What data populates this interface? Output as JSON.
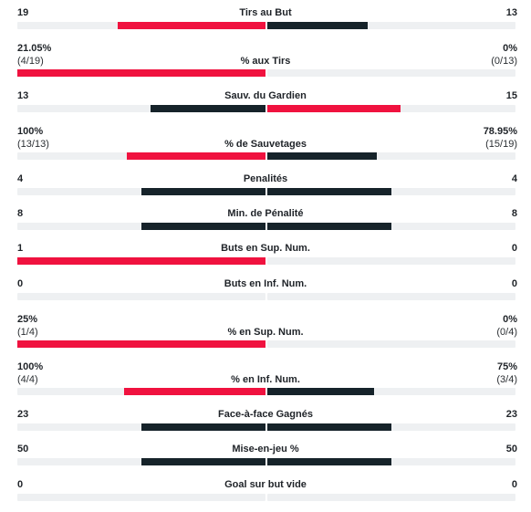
{
  "colors": {
    "leader": "#f0123f",
    "trailer": "#16232a",
    "track": "#eef0f2"
  },
  "stats": [
    {
      "label": "Tirs au But",
      "home": "19",
      "away": "13",
      "home_share": 0.594,
      "away_share": 0.406,
      "home_color": "leader",
      "away_color": "trailer"
    },
    {
      "label": "% aux Tirs",
      "home": "21.05%",
      "home_sub": "(4/19)",
      "away": "0%",
      "away_sub": "(0/13)",
      "home_share": 1.0,
      "away_share": 0.0,
      "home_color": "leader",
      "away_color": "trailer"
    },
    {
      "label": "Sauv. du Gardien",
      "home": "13",
      "away": "15",
      "home_share": 0.464,
      "away_share": 0.536,
      "home_color": "trailer",
      "away_color": "leader"
    },
    {
      "label": "% de Sauvetages",
      "home": "100%",
      "home_sub": "(13/13)",
      "away": "78.95%",
      "away_sub": "(15/19)",
      "home_share": 0.559,
      "away_share": 0.441,
      "home_color": "leader",
      "away_color": "trailer"
    },
    {
      "label": "Penalités",
      "home": "4",
      "away": "4",
      "home_share": 0.5,
      "away_share": 0.5,
      "home_color": "trailer",
      "away_color": "trailer"
    },
    {
      "label": "Min. de Pénalité",
      "home": "8",
      "away": "8",
      "home_share": 0.5,
      "away_share": 0.5,
      "home_color": "trailer",
      "away_color": "trailer"
    },
    {
      "label": "Buts en Sup. Num.",
      "home": "1",
      "away": "0",
      "home_share": 1.0,
      "away_share": 0.0,
      "home_color": "leader",
      "away_color": "trailer"
    },
    {
      "label": "Buts en Inf. Num.",
      "home": "0",
      "away": "0",
      "home_share": 0.0,
      "away_share": 0.0,
      "home_color": "trailer",
      "away_color": "trailer"
    },
    {
      "label": "% en Sup. Num.",
      "home": "25%",
      "home_sub": "(1/4)",
      "away": "0%",
      "away_sub": "(0/4)",
      "home_share": 1.0,
      "away_share": 0.0,
      "home_color": "leader",
      "away_color": "trailer"
    },
    {
      "label": "% en Inf. Num.",
      "home": "100%",
      "home_sub": "(4/4)",
      "away": "75%",
      "away_sub": "(3/4)",
      "home_share": 0.571,
      "away_share": 0.429,
      "home_color": "leader",
      "away_color": "trailer"
    },
    {
      "label": "Face-à-face Gagnés",
      "home": "23",
      "away": "23",
      "home_share": 0.5,
      "away_share": 0.5,
      "home_color": "trailer",
      "away_color": "trailer"
    },
    {
      "label": "Mise-en-jeu %",
      "home": "50",
      "away": "50",
      "home_share": 0.5,
      "away_share": 0.5,
      "home_color": "trailer",
      "away_color": "trailer"
    },
    {
      "label": "Goal sur but vide",
      "home": "0",
      "away": "0",
      "home_share": 0.0,
      "away_share": 0.0,
      "home_color": "trailer",
      "away_color": "trailer"
    }
  ]
}
